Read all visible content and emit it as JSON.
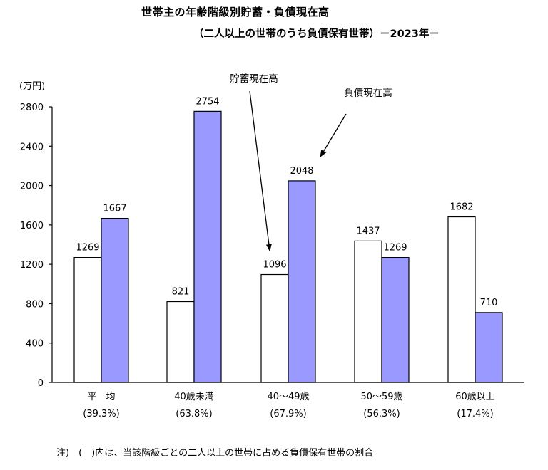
{
  "chart_data": {
    "type": "bar",
    "title": "世帯主の年齢階級別貯蓄・負債現在高",
    "subtitle": "（二人以上の世帯のうち負債保有世帯）－2023年－",
    "unit_label": "(万円)",
    "categories": [
      "平　均",
      "40歳未満",
      "40～49歳",
      "50～59歳",
      "60歳以上"
    ],
    "category_notes": [
      "(39.3%)",
      "(63.8%)",
      "(67.9%)",
      "(56.3%)",
      "(17.4%)"
    ],
    "series": [
      {
        "name": "貯蓄現在高",
        "values": [
          1269,
          821,
          1096,
          1437,
          1682
        ],
        "color": "#ffffff"
      },
      {
        "name": "負債現在高",
        "values": [
          1667,
          2754,
          2048,
          1269,
          710
        ],
        "color": "#9999ff"
      }
    ],
    "ylim": [
      0,
      2800
    ],
    "yticks": [
      0,
      400,
      800,
      1200,
      1600,
      2000,
      2400,
      2800
    ],
    "grid": false,
    "annotations": [
      "貯蓄現在高",
      "負債現在高"
    ]
  },
  "footnote": "注)　(　)内は、当該階級ごとの二人以上の世帯に占める負債保有世帯の割合"
}
